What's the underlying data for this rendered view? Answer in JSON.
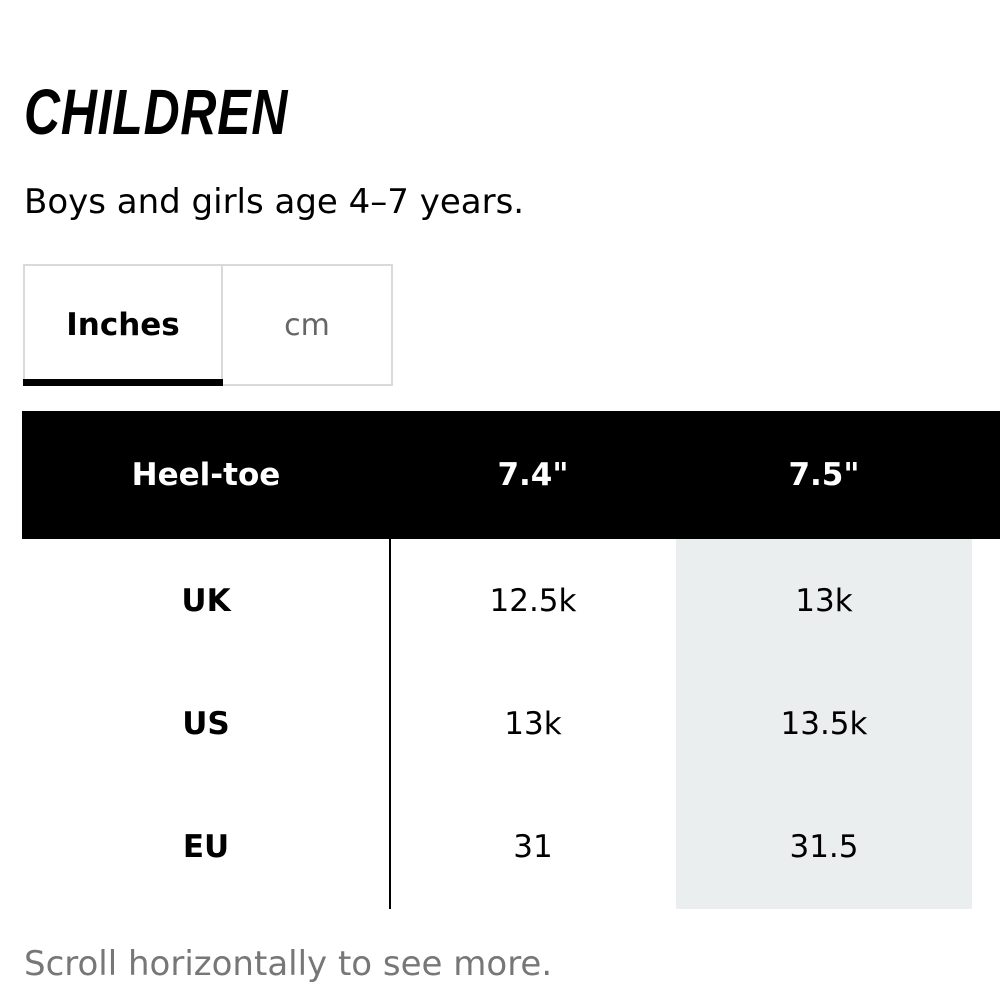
{
  "title": "CHILDREN",
  "subtitle": "Boys and girls age 4–7 years.",
  "unit_toggle": {
    "options": [
      "Inches",
      "cm"
    ],
    "selected": "Inches"
  },
  "table": {
    "header": {
      "label": "Heel-toe",
      "columns": [
        "7.4\"",
        "7.5\""
      ]
    },
    "rows": [
      {
        "label": "UK",
        "values": [
          "12.5k",
          "13k"
        ]
      },
      {
        "label": "US",
        "values": [
          "13k",
          "13.5k"
        ]
      },
      {
        "label": "EU",
        "values": [
          "31",
          "31.5"
        ]
      }
    ],
    "highlight_color": "#ebeeef"
  },
  "footnote": "Scroll horizontally to see more."
}
